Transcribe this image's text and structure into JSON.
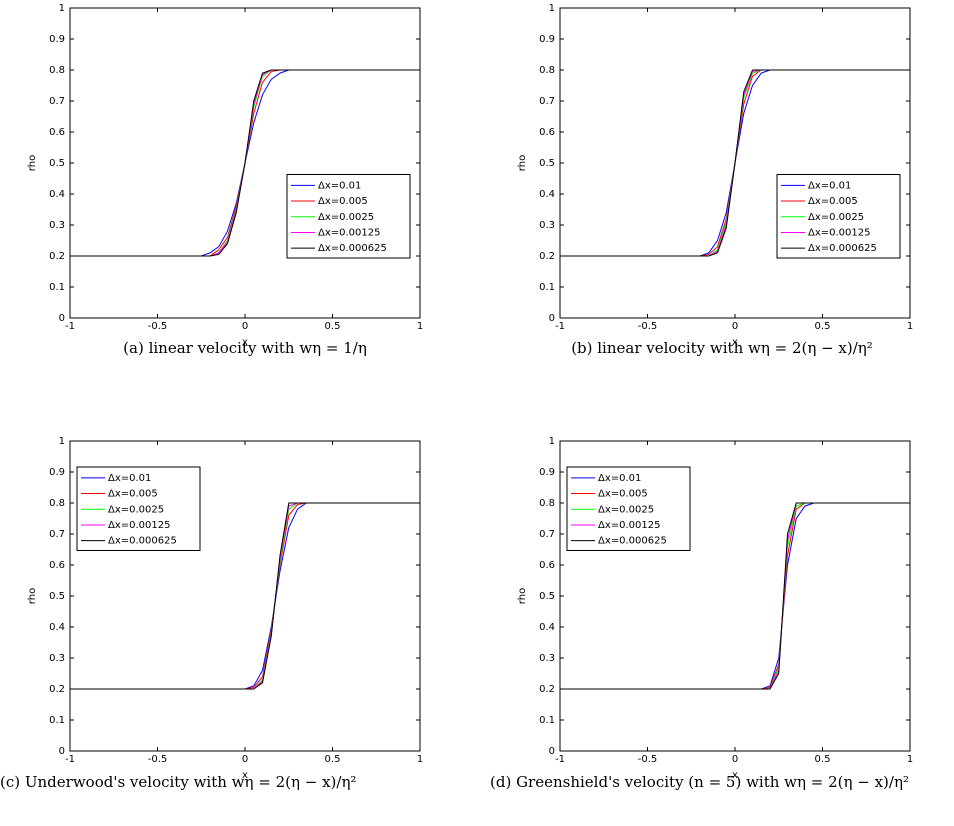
{
  "chart_data": [
    {
      "type": "line",
      "caption": "(a) linear velocity with wη = 1/η",
      "xlabel": "x",
      "ylabel": "rho",
      "xlim": [
        -1,
        1
      ],
      "ylim": [
        0,
        1
      ],
      "xticks": [
        -1,
        -0.5,
        0,
        0.5,
        1
      ],
      "yticks": [
        0,
        0.1,
        0.2,
        0.3,
        0.4,
        0.5,
        0.6,
        0.7,
        0.8,
        0.9,
        1
      ],
      "legend": "lower right",
      "x": [
        -1,
        -0.25,
        -0.2,
        -0.15,
        -0.1,
        -0.05,
        0,
        0.05,
        0.1,
        0.15,
        0.2,
        0.25,
        1
      ],
      "series": [
        {
          "name": "Δx=0.01",
          "color": "#0000ff",
          "values": [
            0.2,
            0.2,
            0.21,
            0.23,
            0.28,
            0.37,
            0.5,
            0.63,
            0.72,
            0.77,
            0.79,
            0.8,
            0.8
          ]
        },
        {
          "name": "Δx=0.005",
          "color": "#ff0000",
          "values": [
            0.2,
            0.2,
            0.2,
            0.22,
            0.26,
            0.36,
            0.5,
            0.66,
            0.76,
            0.795,
            0.8,
            0.8,
            0.8
          ]
        },
        {
          "name": "Δx=0.0025",
          "color": "#00ff00",
          "values": [
            0.2,
            0.2,
            0.2,
            0.21,
            0.25,
            0.35,
            0.5,
            0.68,
            0.78,
            0.8,
            0.8,
            0.8,
            0.8
          ]
        },
        {
          "name": "Δx=0.00125",
          "color": "#ff00ff",
          "values": [
            0.2,
            0.2,
            0.2,
            0.21,
            0.245,
            0.345,
            0.5,
            0.69,
            0.785,
            0.8,
            0.8,
            0.8,
            0.8
          ]
        },
        {
          "name": "Δx=0.000625",
          "color": "#000000",
          "values": [
            0.2,
            0.2,
            0.2,
            0.205,
            0.24,
            0.34,
            0.5,
            0.7,
            0.79,
            0.8,
            0.8,
            0.8,
            0.8
          ]
        }
      ]
    },
    {
      "type": "line",
      "caption": "(b) linear velocity with wη = 2(η − x)/η²",
      "xlabel": "x",
      "ylabel": "rho",
      "xlim": [
        -1,
        1
      ],
      "ylim": [
        0,
        1
      ],
      "xticks": [
        -1,
        -0.5,
        0,
        0.5,
        1
      ],
      "yticks": [
        0,
        0.1,
        0.2,
        0.3,
        0.4,
        0.5,
        0.6,
        0.7,
        0.8,
        0.9,
        1
      ],
      "legend": "lower right",
      "x": [
        -1,
        -0.2,
        -0.15,
        -0.1,
        -0.05,
        0,
        0.05,
        0.1,
        0.15,
        0.2,
        1
      ],
      "series": [
        {
          "name": "Δx=0.01",
          "color": "#0000ff",
          "values": [
            0.2,
            0.2,
            0.21,
            0.25,
            0.34,
            0.5,
            0.66,
            0.75,
            0.79,
            0.8,
            0.8
          ]
        },
        {
          "name": "Δx=0.005",
          "color": "#ff0000",
          "values": [
            0.2,
            0.2,
            0.205,
            0.23,
            0.32,
            0.5,
            0.69,
            0.78,
            0.8,
            0.8,
            0.8
          ]
        },
        {
          "name": "Δx=0.0025",
          "color": "#00ff00",
          "values": [
            0.2,
            0.2,
            0.2,
            0.22,
            0.31,
            0.5,
            0.71,
            0.79,
            0.8,
            0.8,
            0.8
          ]
        },
        {
          "name": "Δx=0.00125",
          "color": "#ff00ff",
          "values": [
            0.2,
            0.2,
            0.2,
            0.215,
            0.3,
            0.5,
            0.72,
            0.795,
            0.8,
            0.8,
            0.8
          ]
        },
        {
          "name": "Δx=0.000625",
          "color": "#000000",
          "values": [
            0.2,
            0.2,
            0.2,
            0.21,
            0.29,
            0.5,
            0.73,
            0.8,
            0.8,
            0.8,
            0.8
          ]
        }
      ]
    },
    {
      "type": "line",
      "caption": "(c) Underwood's velocity with wη = 2(η − x)/η²",
      "xlabel": "x",
      "ylabel": "rho",
      "xlim": [
        -1,
        1
      ],
      "ylim": [
        0,
        1
      ],
      "xticks": [
        -1,
        -0.5,
        0,
        0.5,
        1
      ],
      "yticks": [
        0,
        0.1,
        0.2,
        0.3,
        0.4,
        0.5,
        0.6,
        0.7,
        0.8,
        0.9,
        1
      ],
      "legend": "upper left",
      "x": [
        -1,
        0,
        0.05,
        0.1,
        0.15,
        0.2,
        0.25,
        0.3,
        0.35,
        1
      ],
      "series": [
        {
          "name": "Δx=0.01",
          "color": "#0000ff",
          "values": [
            0.2,
            0.2,
            0.21,
            0.26,
            0.4,
            0.58,
            0.72,
            0.78,
            0.8,
            0.8
          ]
        },
        {
          "name": "Δx=0.005",
          "color": "#ff0000",
          "values": [
            0.2,
            0.2,
            0.205,
            0.24,
            0.39,
            0.6,
            0.76,
            0.795,
            0.8,
            0.8
          ]
        },
        {
          "name": "Δx=0.0025",
          "color": "#00ff00",
          "values": [
            0.2,
            0.2,
            0.2,
            0.23,
            0.38,
            0.61,
            0.78,
            0.8,
            0.8,
            0.8
          ]
        },
        {
          "name": "Δx=0.00125",
          "color": "#ff00ff",
          "values": [
            0.2,
            0.2,
            0.2,
            0.225,
            0.375,
            0.62,
            0.79,
            0.8,
            0.8,
            0.8
          ]
        },
        {
          "name": "Δx=0.000625",
          "color": "#000000",
          "values": [
            0.2,
            0.2,
            0.2,
            0.22,
            0.37,
            0.63,
            0.8,
            0.8,
            0.8,
            0.8
          ]
        }
      ]
    },
    {
      "type": "line",
      "caption": "(d) Greenshield's velocity (n = 5) with wη = 2(η − x)/η²",
      "xlabel": "x",
      "ylabel": "rho",
      "xlim": [
        -1,
        1
      ],
      "ylim": [
        0,
        1
      ],
      "xticks": [
        -1,
        -0.5,
        0,
        0.5,
        1
      ],
      "yticks": [
        0,
        0.1,
        0.2,
        0.3,
        0.4,
        0.5,
        0.6,
        0.7,
        0.8,
        0.9,
        1
      ],
      "legend": "upper left",
      "x": [
        -1,
        0.15,
        0.2,
        0.25,
        0.3,
        0.35,
        0.4,
        0.45,
        1
      ],
      "series": [
        {
          "name": "Δx=0.01",
          "color": "#0000ff",
          "values": [
            0.2,
            0.2,
            0.21,
            0.3,
            0.6,
            0.75,
            0.79,
            0.8,
            0.8
          ]
        },
        {
          "name": "Δx=0.005",
          "color": "#ff0000",
          "values": [
            0.2,
            0.2,
            0.205,
            0.28,
            0.63,
            0.78,
            0.8,
            0.8,
            0.8
          ]
        },
        {
          "name": "Δx=0.0025",
          "color": "#00ff00",
          "values": [
            0.2,
            0.2,
            0.2,
            0.27,
            0.66,
            0.79,
            0.8,
            0.8,
            0.8
          ]
        },
        {
          "name": "Δx=0.00125",
          "color": "#ff00ff",
          "values": [
            0.2,
            0.2,
            0.2,
            0.26,
            0.68,
            0.8,
            0.8,
            0.8,
            0.8
          ]
        },
        {
          "name": "Δx=0.000625",
          "color": "#000000",
          "values": [
            0.2,
            0.2,
            0.2,
            0.25,
            0.7,
            0.8,
            0.8,
            0.8,
            0.8
          ]
        }
      ]
    }
  ]
}
